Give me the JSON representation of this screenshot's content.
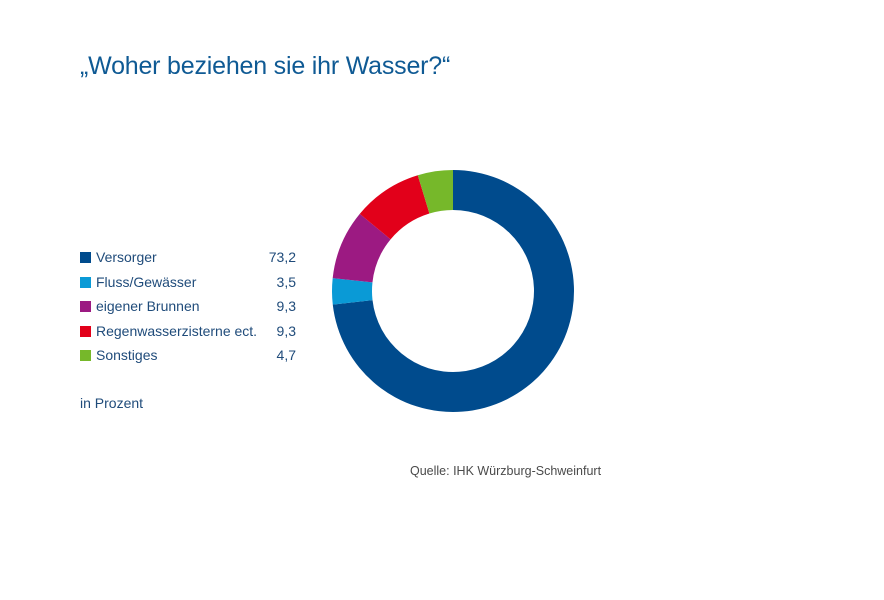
{
  "title": "„Woher beziehen sie ihr Wasser?“",
  "unit_note": "in Prozent",
  "source": "Quelle: IHK Würzburg-Schweinfurt",
  "chart_data": {
    "type": "pie",
    "title": "„Woher beziehen sie ihr Wasser?“",
    "donut": true,
    "legend_position": "left",
    "unit": "in Prozent",
    "categories": [
      "Versorger",
      "Fluss/Gewässer",
      "eigener Brunnen",
      "Regenwasserzisterne ect.",
      "Sonstiges"
    ],
    "values": [
      73.2,
      3.5,
      9.3,
      9.3,
      4.7
    ],
    "value_labels": [
      "73,2",
      "3,5",
      "9,3",
      "9,3",
      "4,7"
    ],
    "colors": [
      "#004b8d",
      "#0a9ad6",
      "#9c1a82",
      "#e2001a",
      "#76b82a"
    ],
    "start_angle": "12 o'clock",
    "direction": "clockwise"
  }
}
